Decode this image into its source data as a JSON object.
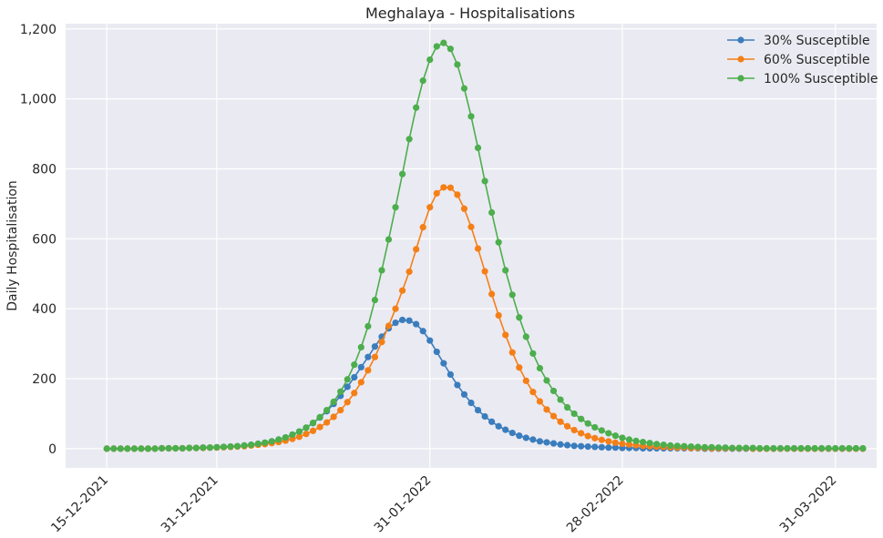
{
  "chart_data": {
    "type": "line",
    "title": "Meghalaya - Hospitalisations",
    "xlabel": "",
    "ylabel": "Daily Hospitalisation",
    "x_start_date": "15-12-2021",
    "x_tick_labels": [
      "15-12-2021",
      "31-12-2021",
      "31-01-2022",
      "28-02-2022",
      "31-03-2022"
    ],
    "y_tick_labels": [
      "0",
      "200",
      "400",
      "600",
      "800",
      "1,000",
      "1,200"
    ],
    "ylim": [
      -55,
      1215
    ],
    "xlim_days": [
      -6,
      112
    ],
    "grid": true,
    "legend_position": "top-right",
    "background": "#eaeaf2",
    "series": [
      {
        "name": "30% Susceptible",
        "color": "#3a7dbd",
        "values": [
          0,
          0,
          0,
          0,
          0,
          0,
          0,
          0,
          1,
          1,
          1,
          1,
          2,
          2,
          3,
          3,
          4,
          5,
          6,
          7,
          9,
          11,
          14,
          17,
          21,
          26,
          32,
          40,
          49,
          60,
          73,
          89,
          107,
          128,
          151,
          177,
          204,
          233,
          262,
          292,
          320,
          344,
          360,
          368,
          366,
          356,
          336,
          309,
          277,
          244,
          212,
          182,
          155,
          131,
          110,
          92,
          77,
          64,
          54,
          45,
          37,
          31,
          26,
          21,
          18,
          15,
          12,
          10,
          8,
          7,
          6,
          5,
          4,
          3,
          3,
          2,
          2,
          2,
          1,
          1,
          1,
          1,
          1,
          1,
          1,
          1,
          1,
          0,
          0,
          0,
          0,
          0,
          0,
          0,
          0,
          0,
          0,
          0,
          0,
          0,
          0,
          0,
          0,
          0,
          0,
          0,
          0,
          0,
          0,
          0,
          0
        ]
      },
      {
        "name": "60% Susceptible",
        "color": "#f57f17",
        "values": [
          0,
          0,
          0,
          0,
          0,
          0,
          0,
          0,
          1,
          1,
          1,
          1,
          2,
          2,
          2,
          3,
          3,
          4,
          5,
          6,
          7,
          9,
          11,
          13,
          16,
          19,
          23,
          28,
          34,
          42,
          51,
          62,
          75,
          91,
          110,
          133,
          159,
          190,
          224,
          262,
          305,
          351,
          400,
          452,
          506,
          570,
          633,
          690,
          730,
          747,
          746,
          726,
          686,
          634,
          572,
          507,
          442,
          381,
          325,
          275,
          232,
          194,
          162,
          135,
          112,
          93,
          77,
          64,
          53,
          44,
          36,
          30,
          25,
          21,
          17,
          14,
          12,
          10,
          8,
          7,
          6,
          5,
          4,
          3,
          3,
          2,
          2,
          2,
          1,
          1,
          1,
          1,
          1,
          1,
          0,
          0,
          0,
          0,
          0,
          0,
          0,
          0,
          0,
          0,
          0,
          0,
          0,
          0,
          0,
          0,
          0
        ]
      },
      {
        "name": "100% Susceptible",
        "color": "#4cae4c",
        "values": [
          0,
          0,
          0,
          0,
          0,
          0,
          0,
          0,
          1,
          1,
          1,
          1,
          2,
          2,
          3,
          3,
          4,
          5,
          6,
          7,
          9,
          11,
          14,
          17,
          21,
          26,
          32,
          40,
          49,
          60,
          74,
          90,
          110,
          134,
          163,
          198,
          240,
          290,
          350,
          425,
          510,
          598,
          690,
          785,
          885,
          975,
          1052,
          1112,
          1150,
          1160,
          1143,
          1098,
          1030,
          950,
          860,
          765,
          675,
          590,
          510,
          440,
          375,
          320,
          272,
          230,
          195,
          165,
          140,
          118,
          100,
          85,
          72,
          61,
          52,
          44,
          37,
          31,
          26,
          22,
          19,
          16,
          13,
          11,
          9,
          8,
          7,
          6,
          5,
          4,
          4,
          3,
          3,
          2,
          2,
          2,
          2,
          1,
          1,
          1,
          1,
          1,
          1,
          1,
          1,
          1,
          1,
          1,
          1,
          1,
          1,
          1,
          1
        ]
      }
    ]
  }
}
